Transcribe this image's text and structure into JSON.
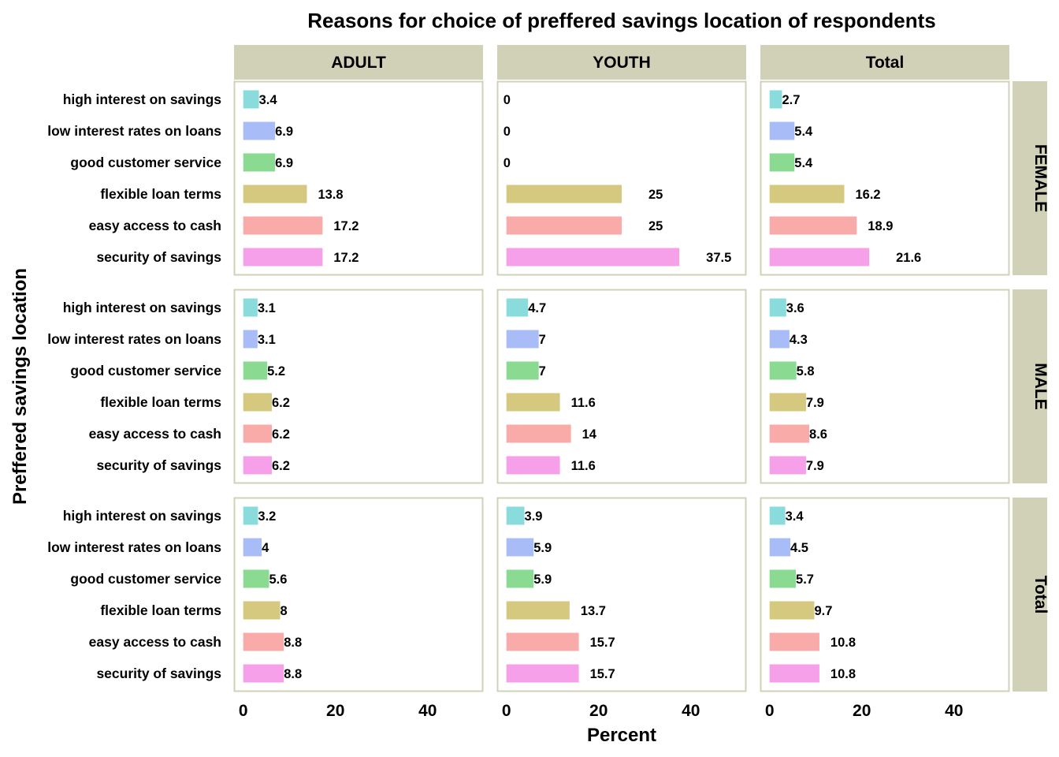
{
  "chart_data": {
    "type": "bar",
    "orientation": "horizontal",
    "title": "Reasons for choice of preffered savings location of respondents",
    "xlabel": "Percent",
    "ylabel": "Preffered savings location",
    "xlim": [
      -2,
      52
    ],
    "xticks": [
      0,
      20,
      40
    ],
    "column_facets": [
      "ADULT",
      "YOUTH",
      "Total"
    ],
    "row_facets": [
      "FEMALE",
      "MALE",
      "Total"
    ],
    "categories": [
      "high interest on savings",
      "low interest rates on loans",
      "good customer service",
      "flexible loan terms",
      "easy access to cash",
      "security of savings"
    ],
    "colors": [
      "#8ADBDB",
      "#A8BDF7",
      "#8ADA92",
      "#D4C97E",
      "#F8ABA9",
      "#F6A0EA"
    ],
    "panels": [
      [
        {
          "values": [
            3.4,
            6.9,
            6.9,
            13.8,
            17.2,
            17.2
          ],
          "labels": [
            "3.4",
            "6.9",
            "6.9",
            "13.8",
            "17.2",
            "17.2"
          ]
        },
        {
          "values": [
            0,
            0,
            0,
            25,
            25,
            37.5
          ],
          "labels": [
            "0",
            "0",
            "0",
            "25",
            "25",
            "37.5"
          ]
        },
        {
          "values": [
            2.7,
            5.4,
            5.4,
            16.2,
            18.9,
            21.6
          ],
          "labels": [
            "2.7",
            "5.4",
            "5.4",
            "16.2",
            "18.9",
            "21.6"
          ]
        }
      ],
      [
        {
          "values": [
            3.1,
            3.1,
            5.2,
            6.2,
            6.2,
            6.2
          ],
          "labels": [
            "3.1",
            "3.1",
            "5.2",
            "6.2",
            "6.2",
            "6.2"
          ]
        },
        {
          "values": [
            4.7,
            7,
            7,
            11.6,
            14,
            11.6
          ],
          "labels": [
            "4.7",
            "7",
            "7",
            "11.6",
            "14",
            "11.6"
          ]
        },
        {
          "values": [
            3.6,
            4.3,
            5.8,
            7.9,
            8.6,
            7.9
          ],
          "labels": [
            "3.6",
            "4.3",
            "5.8",
            "7.9",
            "8.6",
            "7.9"
          ]
        }
      ],
      [
        {
          "values": [
            3.2,
            4,
            5.6,
            8,
            8.8,
            8.8
          ],
          "labels": [
            "3.2",
            "4",
            "5.6",
            "8",
            "8.8",
            "8.8"
          ]
        },
        {
          "values": [
            3.9,
            5.9,
            5.9,
            13.7,
            15.7,
            15.7
          ],
          "labels": [
            "3.9",
            "5.9",
            "5.9",
            "13.7",
            "15.7",
            "15.7"
          ]
        },
        {
          "values": [
            3.4,
            4.5,
            5.7,
            9.7,
            10.8,
            10.8
          ],
          "labels": [
            "3.4",
            "4.5",
            "5.7",
            "9.7",
            "10.8",
            "10.8"
          ]
        }
      ]
    ],
    "strip_color": "#D1D1B8",
    "panel_border_color": "#D1D1B8",
    "grid": false,
    "legend": "none"
  }
}
